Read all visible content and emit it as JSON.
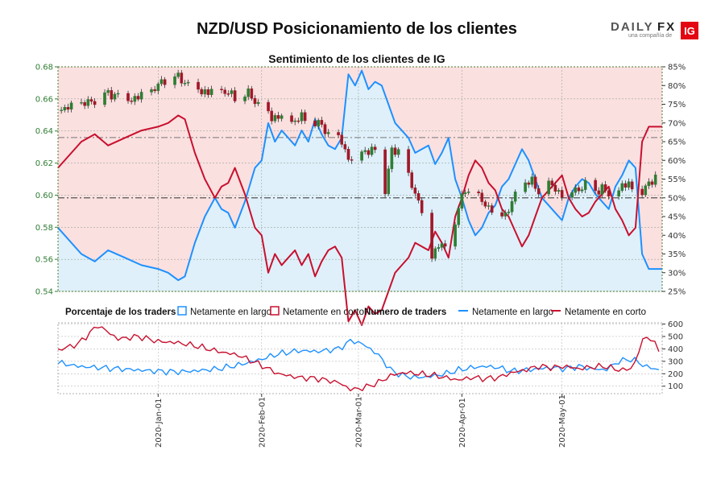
{
  "title": "NZD/USD Posicionamiento de los clientes",
  "logo": {
    "text_a": "DAILY",
    "text_b": "FX",
    "tagline": "una compañía de",
    "badge": "IG",
    "accent": "#e30613"
  },
  "colors": {
    "long": "#1e90ff",
    "short": "#c8102e",
    "long_fill": "#dff0fa",
    "short_fill": "#fbe0e0",
    "up_candle": "#2e7d32",
    "down_candle": "#a01828",
    "grid": "#9aa59a"
  },
  "chart_data": [
    {
      "type": "candlestick",
      "title": "Sentimiento de los clientes de IG",
      "y_left_ticks": [
        "0.68",
        "0.66",
        "0.64",
        "0.62",
        "0.60",
        "0.58",
        "0.56",
        "0.54"
      ],
      "y_right_ticks": [
        "85%",
        "80%",
        "75%",
        "70%",
        "65%",
        "60%",
        "55%",
        "50%",
        "45%",
        "40%",
        "35%",
        "30%",
        "25%"
      ],
      "ylim_price": [
        0.54,
        0.68
      ],
      "ylim_pct": [
        25,
        85
      ],
      "x_dates": [
        "2020-Jan-01",
        "2020-Feb-01",
        "2020-Mar-01",
        "2020-Apr-01",
        "2020-May-01"
      ],
      "x_range_days": [
        -30,
        151
      ],
      "reference_lines": {
        "price": 0.6359,
        "pct": 50
      },
      "price_close_points": [
        [
          -30,
          0.653
        ],
        [
          -25,
          0.655
        ],
        [
          -20,
          0.658
        ],
        [
          -17,
          0.663
        ],
        [
          -12,
          0.663
        ],
        [
          -8,
          0.66
        ],
        [
          -4,
          0.662
        ],
        [
          -1,
          0.666
        ],
        [
          2,
          0.672
        ],
        [
          5,
          0.674
        ],
        [
          8,
          0.671
        ],
        [
          11,
          0.667
        ],
        [
          15,
          0.664
        ],
        [
          19,
          0.665
        ],
        [
          23,
          0.661
        ],
        [
          27,
          0.663
        ],
        [
          31,
          0.655
        ],
        [
          34,
          0.649
        ],
        [
          37,
          0.649
        ],
        [
          40,
          0.646
        ],
        [
          43,
          0.648
        ],
        [
          46,
          0.646
        ],
        [
          49,
          0.643
        ],
        [
          52,
          0.636
        ],
        [
          55,
          0.634
        ],
        [
          57,
          0.623
        ],
        [
          59,
          0.622
        ],
        [
          61,
          0.628
        ],
        [
          64,
          0.627
        ],
        [
          67,
          0.629
        ],
        [
          68,
          0.603
        ],
        [
          70,
          0.627
        ],
        [
          72,
          0.628
        ],
        [
          74,
          0.615
        ],
        [
          76,
          0.606
        ],
        [
          78,
          0.597
        ],
        [
          80,
          0.585
        ],
        [
          81,
          0.571
        ],
        [
          82,
          0.562
        ],
        [
          84,
          0.57
        ],
        [
          86,
          0.566
        ],
        [
          88,
          0.575
        ],
        [
          90,
          0.592
        ],
        [
          92,
          0.603
        ],
        [
          94,
          0.601
        ],
        [
          96,
          0.598
        ],
        [
          98,
          0.594
        ],
        [
          100,
          0.592
        ],
        [
          102,
          0.589
        ],
        [
          104,
          0.588
        ],
        [
          106,
          0.596
        ],
        [
          108,
          0.602
        ],
        [
          110,
          0.609
        ],
        [
          112,
          0.608
        ],
        [
          114,
          0.601
        ],
        [
          116,
          0.608
        ],
        [
          118,
          0.605
        ],
        [
          120,
          0.602
        ],
        [
          122,
          0.601
        ],
        [
          124,
          0.603
        ],
        [
          127,
          0.605
        ],
        [
          129,
          0.607
        ],
        [
          131,
          0.603
        ],
        [
          133,
          0.604
        ],
        [
          135,
          0.6
        ],
        [
          137,
          0.599
        ],
        [
          139,
          0.605
        ],
        [
          141,
          0.607
        ],
        [
          143,
          0.605
        ],
        [
          145,
          0.601
        ],
        [
          147,
          0.609
        ],
        [
          149,
          0.61
        ],
        [
          151,
          0.612
        ]
      ],
      "pct_long_points": [
        [
          -30,
          42
        ],
        [
          -23,
          35
        ],
        [
          -19,
          33
        ],
        [
          -15,
          36
        ],
        [
          -10,
          34
        ],
        [
          -5,
          32
        ],
        [
          0,
          31
        ],
        [
          3,
          30
        ],
        [
          6,
          28
        ],
        [
          8,
          29
        ],
        [
          11,
          38
        ],
        [
          14,
          45
        ],
        [
          17,
          50
        ],
        [
          19,
          47
        ],
        [
          21,
          46
        ],
        [
          23,
          42
        ],
        [
          26,
          49
        ],
        [
          29,
          58
        ],
        [
          31,
          60
        ],
        [
          33,
          70
        ],
        [
          35,
          65
        ],
        [
          37,
          68
        ],
        [
          39,
          66
        ],
        [
          41,
          64
        ],
        [
          43,
          68
        ],
        [
          45,
          65
        ],
        [
          47,
          71
        ],
        [
          49,
          67
        ],
        [
          51,
          64
        ],
        [
          53,
          63
        ],
        [
          55,
          66
        ],
        [
          57,
          83
        ],
        [
          59,
          80
        ],
        [
          61,
          84
        ],
        [
          63,
          79
        ],
        [
          65,
          81
        ],
        [
          67,
          80
        ],
        [
          69,
          75
        ],
        [
          71,
          70
        ],
        [
          73,
          68
        ],
        [
          75,
          66
        ],
        [
          77,
          62
        ],
        [
          79,
          63
        ],
        [
          81,
          64
        ],
        [
          83,
          59
        ],
        [
          85,
          62
        ],
        [
          87,
          66
        ],
        [
          89,
          55
        ],
        [
          91,
          50
        ],
        [
          93,
          44
        ],
        [
          95,
          40
        ],
        [
          97,
          42
        ],
        [
          99,
          46
        ],
        [
          101,
          48
        ],
        [
          103,
          53
        ],
        [
          105,
          55
        ],
        [
          107,
          59
        ],
        [
          109,
          63
        ],
        [
          111,
          60
        ],
        [
          113,
          55
        ],
        [
          115,
          50
        ],
        [
          117,
          48
        ],
        [
          119,
          46
        ],
        [
          121,
          44
        ],
        [
          123,
          50
        ],
        [
          125,
          53
        ],
        [
          127,
          55
        ],
        [
          129,
          54
        ],
        [
          131,
          51
        ],
        [
          133,
          49
        ],
        [
          135,
          47
        ],
        [
          137,
          53
        ],
        [
          139,
          56
        ],
        [
          141,
          60
        ],
        [
          143,
          58
        ],
        [
          145,
          35
        ],
        [
          147,
          31
        ],
        [
          149,
          31
        ],
        [
          151,
          31
        ]
      ],
      "pct_short_points": [
        [
          -30,
          58
        ],
        [
          -23,
          65
        ],
        [
          -19,
          67
        ],
        [
          -15,
          64
        ],
        [
          -10,
          66
        ],
        [
          -5,
          68
        ],
        [
          0,
          69
        ],
        [
          3,
          70
        ],
        [
          6,
          72
        ],
        [
          8,
          71
        ],
        [
          11,
          62
        ],
        [
          14,
          55
        ],
        [
          17,
          50
        ],
        [
          19,
          53
        ],
        [
          21,
          54
        ],
        [
          23,
          58
        ],
        [
          26,
          51
        ],
        [
          29,
          42
        ],
        [
          31,
          40
        ],
        [
          33,
          30
        ],
        [
          35,
          35
        ],
        [
          37,
          32
        ],
        [
          39,
          34
        ],
        [
          41,
          36
        ],
        [
          43,
          32
        ],
        [
          45,
          35
        ],
        [
          47,
          29
        ],
        [
          49,
          33
        ],
        [
          51,
          36
        ],
        [
          53,
          37
        ],
        [
          55,
          34
        ],
        [
          57,
          17
        ],
        [
          59,
          20
        ],
        [
          61,
          16
        ],
        [
          63,
          21
        ],
        [
          65,
          19
        ],
        [
          67,
          20
        ],
        [
          69,
          25
        ],
        [
          71,
          30
        ],
        [
          73,
          32
        ],
        [
          75,
          34
        ],
        [
          77,
          38
        ],
        [
          79,
          37
        ],
        [
          81,
          36
        ],
        [
          83,
          41
        ],
        [
          85,
          38
        ],
        [
          87,
          34
        ],
        [
          89,
          45
        ],
        [
          91,
          50
        ],
        [
          93,
          56
        ],
        [
          95,
          60
        ],
        [
          97,
          58
        ],
        [
          99,
          54
        ],
        [
          101,
          52
        ],
        [
          103,
          47
        ],
        [
          105,
          45
        ],
        [
          107,
          41
        ],
        [
          109,
          37
        ],
        [
          111,
          40
        ],
        [
          113,
          45
        ],
        [
          115,
          50
        ],
        [
          117,
          52
        ],
        [
          119,
          54
        ],
        [
          121,
          56
        ],
        [
          123,
          50
        ],
        [
          125,
          47
        ],
        [
          127,
          45
        ],
        [
          129,
          46
        ],
        [
          131,
          49
        ],
        [
          133,
          51
        ],
        [
          135,
          53
        ],
        [
          137,
          47
        ],
        [
          139,
          44
        ],
        [
          141,
          40
        ],
        [
          143,
          42
        ],
        [
          145,
          65
        ],
        [
          147,
          69
        ],
        [
          149,
          69
        ],
        [
          151,
          69
        ]
      ]
    },
    {
      "type": "line",
      "title": "Numero de traders",
      "y_ticks": [
        "600",
        "500",
        "400",
        "300",
        "200",
        "100"
      ],
      "ylim": [
        40,
        610
      ],
      "series": [
        {
          "name": "Netamente en largo",
          "points": [
            [
              -30,
              290
            ],
            [
              -24,
              260
            ],
            [
              -18,
              250
            ],
            [
              -12,
              240
            ],
            [
              -6,
              230
            ],
            [
              0,
              220
            ],
            [
              6,
              215
            ],
            [
              12,
              225
            ],
            [
              18,
              240
            ],
            [
              24,
              270
            ],
            [
              30,
              310
            ],
            [
              36,
              360
            ],
            [
              42,
              385
            ],
            [
              48,
              380
            ],
            [
              54,
              400
            ],
            [
              58,
              470
            ],
            [
              62,
              430
            ],
            [
              66,
              350
            ],
            [
              70,
              220
            ],
            [
              74,
              180
            ],
            [
              78,
              170
            ],
            [
              82,
              180
            ],
            [
              86,
              200
            ],
            [
              90,
              230
            ],
            [
              94,
              250
            ],
            [
              98,
              260
            ],
            [
              102,
              250
            ],
            [
              106,
              220
            ],
            [
              110,
              230
            ],
            [
              114,
              240
            ],
            [
              118,
              250
            ],
            [
              122,
              240
            ],
            [
              126,
              260
            ],
            [
              130,
              240
            ],
            [
              134,
              230
            ],
            [
              138,
              300
            ],
            [
              142,
              320
            ],
            [
              146,
              260
            ],
            [
              150,
              230
            ]
          ]
        },
        {
          "name": "Netamente en corto",
          "points": [
            [
              -30,
              390
            ],
            [
              -24,
              440
            ],
            [
              -18,
              590
            ],
            [
              -12,
              480
            ],
            [
              -6,
              500
            ],
            [
              0,
              460
            ],
            [
              6,
              450
            ],
            [
              12,
              420
            ],
            [
              18,
              380
            ],
            [
              24,
              350
            ],
            [
              30,
              280
            ],
            [
              36,
              200
            ],
            [
              42,
              170
            ],
            [
              48,
              160
            ],
            [
              54,
              130
            ],
            [
              58,
              70
            ],
            [
              62,
              90
            ],
            [
              66,
              130
            ],
            [
              70,
              190
            ],
            [
              74,
              210
            ],
            [
              78,
              200
            ],
            [
              82,
              190
            ],
            [
              86,
              170
            ],
            [
              90,
              150
            ],
            [
              94,
              170
            ],
            [
              98,
              160
            ],
            [
              102,
              170
            ],
            [
              106,
              210
            ],
            [
              110,
              230
            ],
            [
              114,
              260
            ],
            [
              118,
              250
            ],
            [
              122,
              260
            ],
            [
              126,
              240
            ],
            [
              130,
              255
            ],
            [
              134,
              260
            ],
            [
              138,
              230
            ],
            [
              142,
              240
            ],
            [
              146,
              520
            ],
            [
              150,
              400
            ]
          ]
        }
      ]
    }
  ],
  "legend": {
    "pct_label": "Porcentaje de los traders",
    "count_label": "Numero de traders",
    "long": "Netamente en largo",
    "short": "Netamente en corto"
  }
}
